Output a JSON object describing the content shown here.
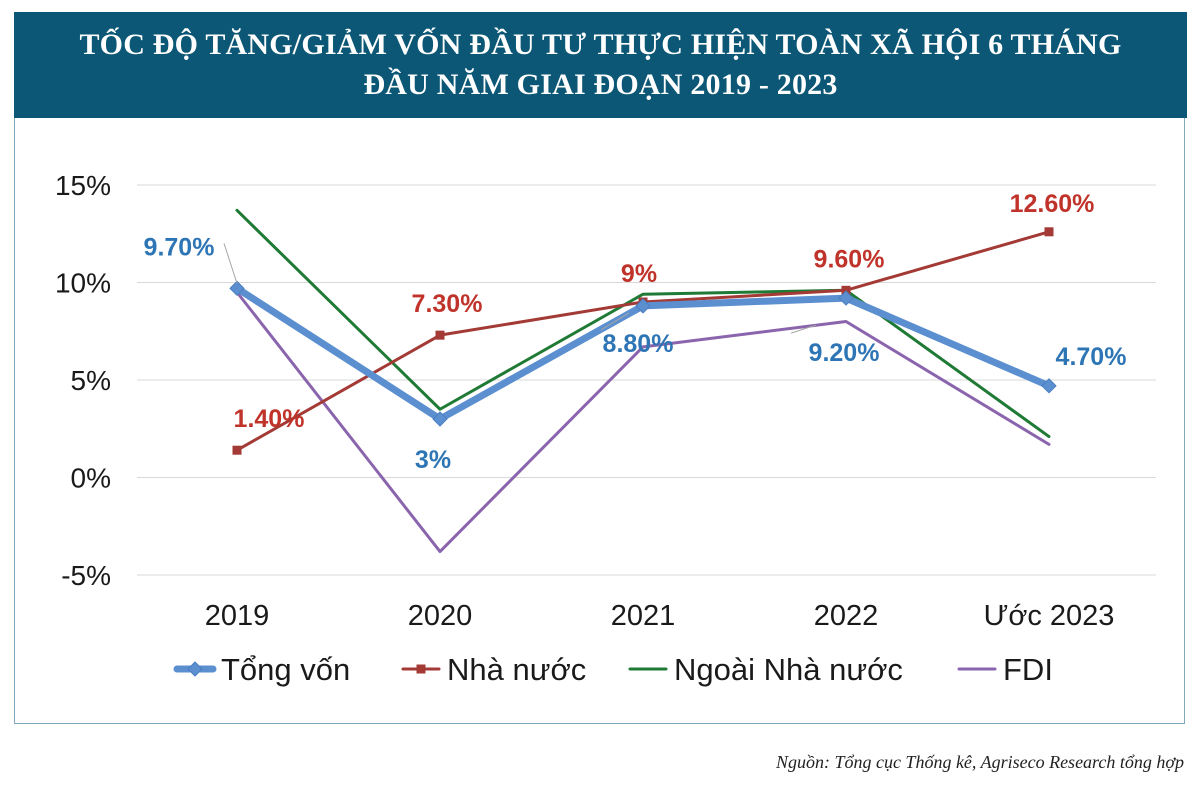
{
  "title": {
    "line1": "TỐC ĐỘ TĂNG/GIẢM VỐN ĐẦU TƯ THỰC HIỆN TOÀN XÃ HỘI 6 THÁNG",
    "line2": "ĐẦU NĂM GIAI ĐOẠN 2019 - 2023"
  },
  "source": "Nguồn: Tổng cục Thống kê, Agriseco Research tổng hợp",
  "chart_data": {
    "type": "line",
    "categories": [
      "2019",
      "2020",
      "2021",
      "2022",
      "Ước 2023"
    ],
    "ylim": [
      -5,
      15
    ],
    "yticks": [
      -5,
      0,
      5,
      10,
      15
    ],
    "ytick_labels": [
      "-5%",
      "0%",
      "5%",
      "10%",
      "15%"
    ],
    "grid": true,
    "legend_position": "bottom",
    "series": [
      {
        "name": "Tổng vốn",
        "values": [
          9.7,
          3.0,
          8.8,
          9.2,
          4.7
        ],
        "labels": [
          "9.70%",
          "3%",
          "8.80%",
          "9.20%",
          "4.70%"
        ],
        "color": "#5b8fd0",
        "label_color": "#2e75b6",
        "marker": "diamond"
      },
      {
        "name": "Nhà nước",
        "values": [
          1.4,
          7.3,
          9.0,
          9.6,
          12.6
        ],
        "labels": [
          "1.40%",
          "7.30%",
          "9%",
          "9.60%",
          "12.60%"
        ],
        "color": "#a33a36",
        "label_color": "#c0332b",
        "marker": "square"
      },
      {
        "name": "Ngoài Nhà nước",
        "values": [
          13.7,
          3.5,
          9.4,
          9.6,
          2.1
        ],
        "color": "#1f7a35"
      },
      {
        "name": "FDI",
        "values": [
          9.5,
          -3.8,
          6.7,
          8.0,
          1.7
        ],
        "color": "#8a64ad"
      }
    ]
  }
}
